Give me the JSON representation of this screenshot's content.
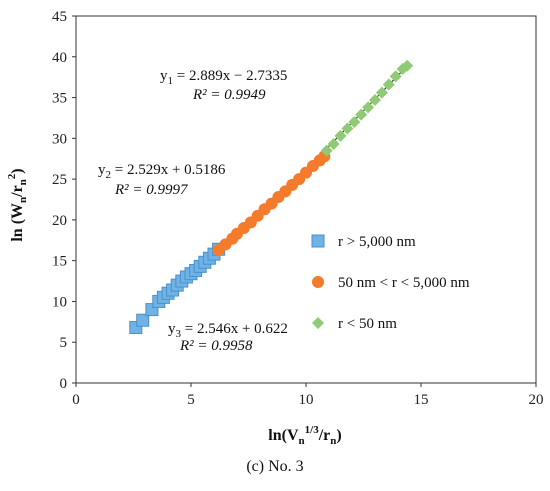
{
  "chart_data": {
    "type": "scatter",
    "caption": "(c) No. 3",
    "xlabel": {
      "base": "ln(V",
      "sub": "n",
      "sup": "1/3",
      "tail": "/r",
      "sub2": "n",
      "end": ")"
    },
    "ylabel": {
      "base": "ln (W",
      "sub": "n",
      "mid": "/r",
      "sub2": "n",
      "sup": "2",
      "end": ")"
    },
    "xlim": [
      0,
      20
    ],
    "ylim": [
      0,
      45
    ],
    "xticks": [
      "0",
      "5",
      "10",
      "15",
      "20"
    ],
    "yticks": [
      "0",
      "5",
      "10",
      "15",
      "20",
      "25",
      "30",
      "35",
      "40",
      "45"
    ],
    "grid": false,
    "legend_position": "right",
    "colors": {
      "blue": "#6fb3e6",
      "orange": "#f47a2c",
      "green": "#8ecb74"
    },
    "series": [
      {
        "name": "r > 5,000 nm",
        "marker": "square",
        "color": "#6fb3e6",
        "equation": {
          "y": "y",
          "sub": "3",
          "rhs": " = 2.546x + 0.622",
          "r2": "R² = 0.9958"
        },
        "slope": 2.546,
        "intercept": 0.622,
        "points": [
          [
            2.6,
            6.8
          ],
          [
            2.9,
            7.7
          ],
          [
            3.3,
            9.0
          ],
          [
            3.6,
            10.0
          ],
          [
            3.8,
            10.5
          ],
          [
            4.0,
            11.0
          ],
          [
            4.2,
            11.4
          ],
          [
            4.4,
            12.0
          ],
          [
            4.6,
            12.5
          ],
          [
            4.8,
            13.0
          ],
          [
            5.0,
            13.4
          ],
          [
            5.2,
            13.8
          ],
          [
            5.4,
            14.3
          ],
          [
            5.6,
            14.8
          ],
          [
            5.8,
            15.3
          ],
          [
            6.0,
            15.8
          ],
          [
            6.2,
            16.4
          ]
        ]
      },
      {
        "name": "50 nm < r < 5,000 nm",
        "marker": "circle",
        "color": "#f47a2c",
        "equation": {
          "y": "y",
          "sub": "2",
          "rhs": " = 2.529x + 0.5186",
          "r2": "R² = 0.9997"
        },
        "slope": 2.529,
        "intercept": 0.5186,
        "points": [
          [
            6.2,
            16.3
          ],
          [
            6.5,
            17.0
          ],
          [
            6.8,
            17.7
          ],
          [
            7.0,
            18.3
          ],
          [
            7.3,
            19.0
          ],
          [
            7.6,
            19.7
          ],
          [
            7.9,
            20.5
          ],
          [
            8.2,
            21.3
          ],
          [
            8.5,
            22.0
          ],
          [
            8.8,
            22.8
          ],
          [
            9.1,
            23.5
          ],
          [
            9.4,
            24.3
          ],
          [
            9.7,
            25.0
          ],
          [
            10.0,
            25.8
          ],
          [
            10.3,
            26.6
          ],
          [
            10.6,
            27.3
          ],
          [
            10.8,
            27.8
          ]
        ]
      },
      {
        "name": "r < 50 nm",
        "marker": "diamond",
        "color": "#8ecb74",
        "equation": {
          "y": "y",
          "sub": "1",
          "rhs": " = 2.889x − 2.7335",
          "r2": "R² = 0.9949"
        },
        "slope": 2.889,
        "intercept": -2.7335,
        "points": [
          [
            10.9,
            28.5
          ],
          [
            11.2,
            29.3
          ],
          [
            11.5,
            30.3
          ],
          [
            11.8,
            31.2
          ],
          [
            12.1,
            32.0
          ],
          [
            12.4,
            32.9
          ],
          [
            12.7,
            33.8
          ],
          [
            13.0,
            34.7
          ],
          [
            13.3,
            35.6
          ],
          [
            13.6,
            36.6
          ],
          [
            13.9,
            37.6
          ],
          [
            14.2,
            38.5
          ],
          [
            14.4,
            38.9
          ]
        ]
      }
    ]
  }
}
